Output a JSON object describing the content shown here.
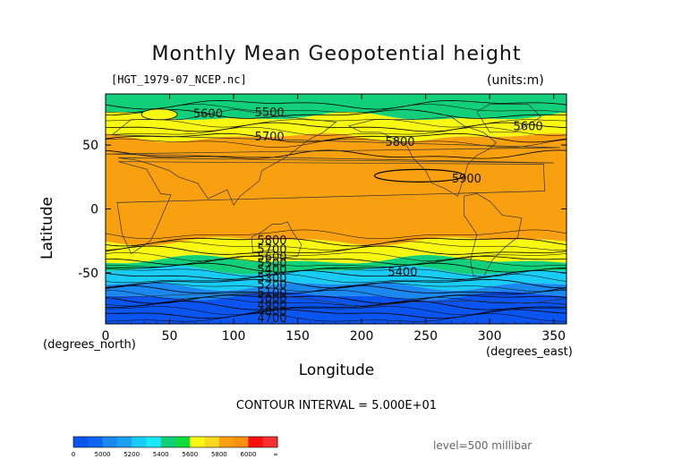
{
  "chart_data": {
    "type": "heatmap",
    "title": "Monthly Mean Geopotential height",
    "file_label": "[HGT_1979-07_NCEP.nc]",
    "units_label": "(units:m)",
    "xlabel": "Longitude",
    "ylabel": "Latitude",
    "x_units_left": "(degrees_north)",
    "x_units_right": "(degrees_east)",
    "xlim": [
      0,
      360
    ],
    "ylim": [
      -90,
      90
    ],
    "x_ticks": [
      0,
      50,
      100,
      150,
      200,
      250,
      300,
      350
    ],
    "y_ticks": [
      50,
      0,
      -50
    ],
    "contour_interval_text": "CONTOUR INTERVAL = 5.000E+01",
    "level_text": "level=500 millibar",
    "contour_interval": 50,
    "color_levels": [
      {
        "min": 4600,
        "max": 5000,
        "color": "#0a55f0"
      },
      {
        "min": 5000,
        "max": 5200,
        "color": "#1a88ee"
      },
      {
        "min": 5200,
        "max": 5400,
        "color": "#19ccf5"
      },
      {
        "min": 5400,
        "max": 5600,
        "color": "#12d07a"
      },
      {
        "min": 5600,
        "max": 5800,
        "color": "#f8f810"
      },
      {
        "min": 5800,
        "max": 6000,
        "color": "#f8a010"
      },
      {
        "min": 6000,
        "max": 6400,
        "color": "#f81010"
      }
    ],
    "zonal_bands": [
      {
        "lat_top": 90,
        "lat_bottom": 72,
        "level": "5400-5600"
      },
      {
        "lat_top": 72,
        "lat_bottom": 56,
        "level": "5600-5800"
      },
      {
        "lat_top": 56,
        "lat_bottom": -25,
        "level": "5800-6000"
      },
      {
        "lat_top": -25,
        "lat_bottom": -40,
        "level": "5600-5800"
      },
      {
        "lat_top": -40,
        "lat_bottom": -48,
        "level": "5400-5600"
      },
      {
        "lat_top": -48,
        "lat_bottom": -60,
        "level": "5200-5400"
      },
      {
        "lat_top": -60,
        "lat_bottom": -68,
        "level": "5000-5200"
      },
      {
        "lat_top": -68,
        "lat_bottom": -90,
        "level": "4600-5000"
      }
    ],
    "contour_labels": [
      {
        "text": "5600",
        "lon": 80,
        "lat": 75
      },
      {
        "text": "5500",
        "lon": 128,
        "lat": 76
      },
      {
        "text": "5700",
        "lon": 128,
        "lat": 57
      },
      {
        "text": "5800",
        "lon": 230,
        "lat": 53
      },
      {
        "text": "5900",
        "lon": 282,
        "lat": 24
      },
      {
        "text": "5600",
        "lon": 330,
        "lat": 65
      },
      {
        "text": "5400",
        "lon": 232,
        "lat": -49
      },
      {
        "text": "5800",
        "lon": 130,
        "lat": -24
      },
      {
        "text": "5700",
        "lon": 130,
        "lat": -31
      },
      {
        "text": "5600",
        "lon": 130,
        "lat": -37
      },
      {
        "text": "5500",
        "lon": 130,
        "lat": -42
      },
      {
        "text": "5400",
        "lon": 130,
        "lat": -47
      },
      {
        "text": "5300",
        "lon": 130,
        "lat": -54
      },
      {
        "text": "5200",
        "lon": 130,
        "lat": -59
      },
      {
        "text": "5100",
        "lon": 130,
        "lat": -65
      },
      {
        "text": "5000",
        "lon": 130,
        "lat": -70
      },
      {
        "text": "4900",
        "lon": 130,
        "lat": -75
      },
      {
        "text": "4800",
        "lon": 130,
        "lat": -80
      },
      {
        "text": "4700",
        "lon": 130,
        "lat": -85
      }
    ],
    "colorbar": {
      "segment_colors": [
        "#0a55f0",
        "#0e65ef",
        "#1a88ee",
        "#1aa0ee",
        "#19ccf5",
        "#18e8f8",
        "#12d07a",
        "#10dc40",
        "#f8f810",
        "#f8d820",
        "#f8a010",
        "#f89010",
        "#f81010",
        "#f83030"
      ],
      "tick_labels": [
        "0",
        "5000",
        "5200",
        "5400",
        "5600",
        "5800",
        "6000",
        "∞"
      ]
    }
  }
}
